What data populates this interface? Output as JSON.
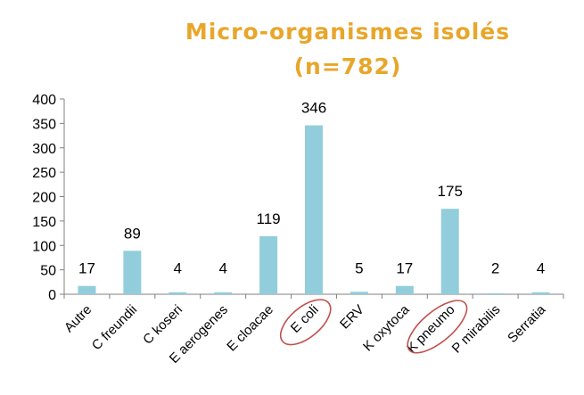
{
  "chart_data": {
    "type": "bar",
    "title_line1": "Micro-organismes isolés",
    "title_line2": "(n=782)",
    "categories": [
      "Autre",
      "C freundii",
      "C koseri",
      "E aerogenes",
      "E cloacae",
      "E coli",
      "ERV",
      "K oxytoca",
      "K pneumo",
      "P mirabilis",
      "Serratia"
    ],
    "values": [
      17,
      89,
      4,
      4,
      119,
      346,
      5,
      17,
      175,
      2,
      4
    ],
    "data_labels": [
      "17",
      "89",
      "4",
      "4",
      "119",
      "346",
      "5",
      "17",
      "175",
      "2",
      "4"
    ],
    "yticks": [
      "0",
      "50",
      "100",
      "150",
      "200",
      "250",
      "300",
      "350",
      "400"
    ],
    "ylim": [
      0,
      400
    ],
    "xlabel": "",
    "ylabel": "",
    "grid": false,
    "highlighted_categories": [
      "E coli",
      "K pneumo"
    ],
    "colors": {
      "bar": "#92CDDC",
      "title": "#E8A62A",
      "highlight": "#C0504D",
      "axis": "#808080"
    }
  }
}
